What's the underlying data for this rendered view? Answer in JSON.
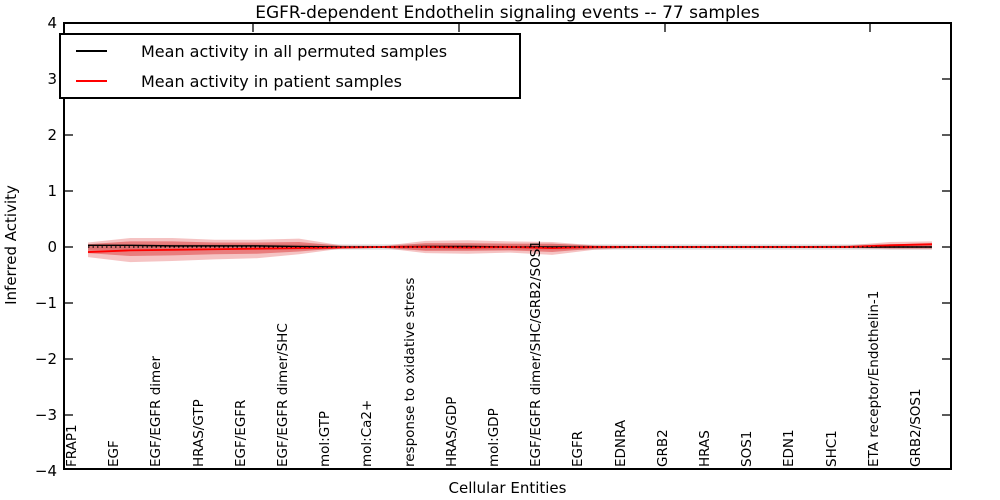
{
  "chart_data": {
    "type": "line",
    "title": "EGFR-dependent Endothelin signaling events -- 77 samples",
    "xlabel": "Cellular Entities",
    "ylabel": "Inferred Activity",
    "ylim": [
      -4,
      4
    ],
    "grid": false,
    "legend_position": "upper left",
    "yticks": {
      "values": [
        4,
        3,
        2,
        1,
        0,
        -1,
        -2,
        -3,
        -4
      ],
      "labels": [
        "4",
        "3",
        "2",
        "1",
        "0",
        "−1",
        "−2",
        "−3",
        "−4"
      ]
    },
    "categories": [
      "FRAP1",
      "EGF",
      "EGF/EGFR dimer",
      "HRAS/GTP",
      "EGF/EGFR",
      "EGF/EGFR dimer/SHC",
      "mol:GTP",
      "mol:Ca2+",
      "response to oxidative stress",
      "HRAS/GDP",
      "mol:GDP",
      "EGF/EGFR dimer/SHC/GRB2/SOS1",
      "EGFR",
      "EDNRA",
      "GRB2",
      "HRAS",
      "SOS1",
      "EDN1",
      "SHC1",
      "ETA receptor/Endothelin-1",
      "GRB2/SOS1"
    ],
    "series": [
      {
        "name": "Mean activity in all permuted samples",
        "color": "#000000",
        "width": 1.4,
        "values": [
          0.03,
          0.03,
          0.02,
          0.02,
          0.02,
          0.01,
          0.0,
          0.0,
          0.01,
          0.01,
          0.0,
          0.0,
          0.0,
          0.0,
          0.0,
          0.0,
          0.0,
          0.0,
          0.0,
          0.0,
          0.0
        ]
      },
      {
        "name": "Mean activity in patient samples",
        "color": "#ff0000",
        "width": 1.8,
        "values": [
          -0.09,
          -0.06,
          -0.05,
          -0.04,
          -0.03,
          -0.02,
          -0.01,
          0.0,
          0.0,
          -0.01,
          0.0,
          -0.02,
          0.0,
          0.0,
          0.0,
          0.0,
          0.0,
          0.0,
          0.0,
          0.03,
          0.05
        ]
      }
    ],
    "bands": [
      {
        "name": "permuted-samples-spread",
        "color": "rgba(120,120,120,0.22)",
        "upper": 0.05,
        "lower": -0.05
      },
      {
        "name": "patient-samples-spread-outer",
        "color": "rgba(220,40,40,0.28)",
        "upper": [
          0.08,
          0.16,
          0.16,
          0.13,
          0.13,
          0.15,
          0.03,
          0.02,
          0.11,
          0.12,
          0.1,
          0.09,
          0.03,
          0.02,
          0.02,
          0.02,
          0.02,
          0.02,
          0.03,
          0.09,
          0.1
        ],
        "lower": [
          -0.18,
          -0.27,
          -0.25,
          -0.22,
          -0.2,
          -0.13,
          -0.03,
          -0.02,
          -0.11,
          -0.12,
          -0.1,
          -0.14,
          -0.05,
          -0.02,
          -0.02,
          -0.02,
          -0.02,
          -0.02,
          -0.02,
          -0.04,
          -0.04
        ]
      },
      {
        "name": "patient-samples-spread-inner",
        "color": "rgba(220,40,40,0.45)",
        "upper": [
          0.05,
          0.1,
          0.1,
          0.08,
          0.08,
          0.09,
          0.02,
          0.01,
          0.07,
          0.07,
          0.06,
          0.06,
          0.02,
          0.01,
          0.01,
          0.01,
          0.01,
          0.01,
          0.02,
          0.05,
          0.06
        ],
        "lower": [
          -0.11,
          -0.16,
          -0.15,
          -0.13,
          -0.12,
          -0.08,
          -0.02,
          -0.01,
          -0.07,
          -0.07,
          -0.06,
          -0.09,
          -0.03,
          -0.01,
          -0.01,
          -0.01,
          -0.01,
          -0.01,
          -0.01,
          -0.02,
          -0.02
        ]
      }
    ],
    "zero_reference_line": {
      "value": 0,
      "style": "dotted",
      "color": "#000000"
    }
  }
}
